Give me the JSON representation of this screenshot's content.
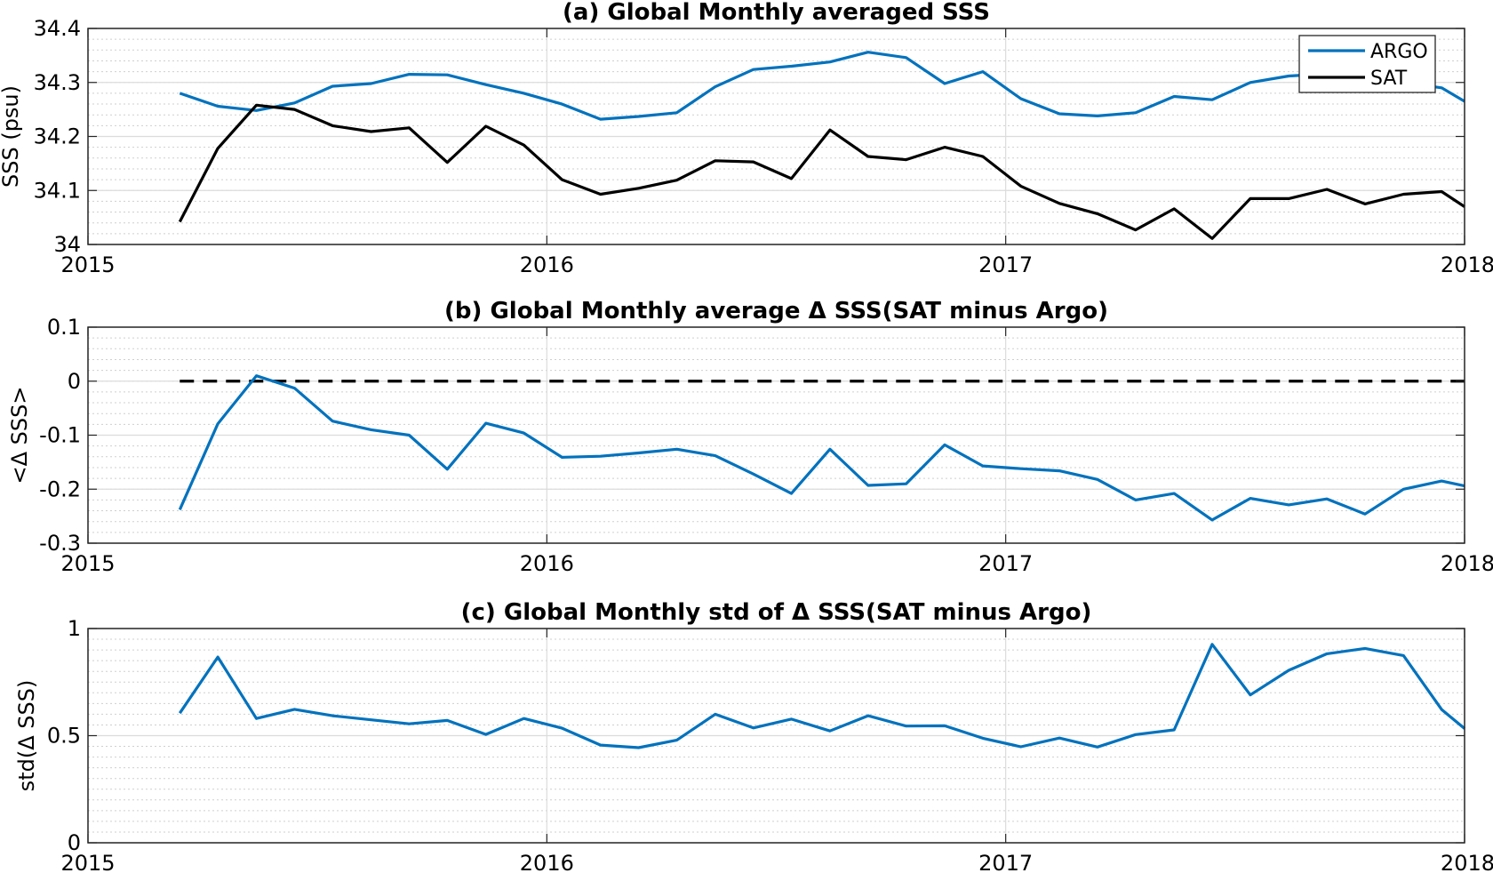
{
  "chart_data": [
    {
      "type": "line",
      "title": "(a) Global Monthly averaged SSS",
      "ylabel": "SSS (psu)",
      "xlabel": "",
      "xlim": [
        2015,
        2018
      ],
      "ylim": [
        34,
        34.4
      ],
      "xticks": [
        2015,
        2016,
        2017,
        2018
      ],
      "xtick_labels": [
        "2015",
        "2016",
        "2017",
        "2018"
      ],
      "yticks": [
        34,
        34.1,
        34.2,
        34.3,
        34.4
      ],
      "ytick_labels": [
        "34",
        "34.1",
        "34.2",
        "34.3",
        "34.4"
      ],
      "grid": true,
      "minor_grid": true,
      "legend": "top-right",
      "x": [
        2015.2,
        2015.283,
        2015.367,
        2015.45,
        2015.533,
        2015.617,
        2015.7,
        2015.783,
        2015.867,
        2015.95,
        2016.033,
        2016.117,
        2016.2,
        2016.283,
        2016.367,
        2016.45,
        2016.533,
        2016.617,
        2016.7,
        2016.783,
        2016.867,
        2016.95,
        2017.033,
        2017.117,
        2017.2,
        2017.283,
        2017.367,
        2017.45,
        2017.533,
        2017.617,
        2017.7,
        2017.783,
        2017.867,
        2017.95,
        2018.0
      ],
      "series": [
        {
          "name": "ARGO",
          "color": "#0072BD",
          "values": [
            34.28,
            34.256,
            34.248,
            34.262,
            34.293,
            34.298,
            34.315,
            34.314,
            34.296,
            34.28,
            34.26,
            34.232,
            34.237,
            34.244,
            34.292,
            34.324,
            34.33,
            34.338,
            34.356,
            34.346,
            34.298,
            34.32,
            34.27,
            34.242,
            34.238,
            34.244,
            34.274,
            34.268,
            34.3,
            34.312,
            34.316,
            34.31,
            34.3,
            34.29,
            34.265
          ]
        },
        {
          "name": "SAT",
          "color": "#000000",
          "values": [
            34.042,
            34.178,
            34.258,
            34.25,
            34.22,
            34.209,
            34.216,
            34.152,
            34.219,
            34.184,
            34.12,
            34.093,
            34.104,
            34.119,
            34.155,
            34.153,
            34.122,
            34.212,
            34.163,
            34.157,
            34.18,
            34.163,
            34.108,
            34.076,
            34.057,
            34.027,
            34.066,
            34.011,
            34.085,
            34.085,
            34.102,
            34.075,
            34.093,
            34.098,
            34.07
          ]
        }
      ]
    },
    {
      "type": "line",
      "title": "(b) Global Monthly average Δ SSS(SAT minus Argo)",
      "ylabel": "<Δ SSS>",
      "xlabel": "",
      "xlim": [
        2015,
        2018
      ],
      "ylim": [
        -0.3,
        0.1
      ],
      "xticks": [
        2015,
        2016,
        2017,
        2018
      ],
      "xtick_labels": [
        "2015",
        "2016",
        "2017",
        "2018"
      ],
      "yticks": [
        -0.3,
        -0.2,
        -0.1,
        0,
        0.1
      ],
      "ytick_labels": [
        "-0.3",
        "-0.2",
        "-0.1",
        "0",
        "0.1"
      ],
      "grid": true,
      "minor_grid": true,
      "reference_line": {
        "y": 0,
        "x_range": [
          2015.2,
          2018.0
        ],
        "style": "dashed",
        "color": "#000000"
      },
      "x": [
        2015.2,
        2015.283,
        2015.367,
        2015.45,
        2015.533,
        2015.617,
        2015.7,
        2015.783,
        2015.867,
        2015.95,
        2016.033,
        2016.117,
        2016.2,
        2016.283,
        2016.367,
        2016.45,
        2016.533,
        2016.617,
        2016.7,
        2016.783,
        2016.867,
        2016.95,
        2017.033,
        2017.117,
        2017.2,
        2017.283,
        2017.367,
        2017.45,
        2017.533,
        2017.617,
        2017.7,
        2017.783,
        2017.867,
        2017.95,
        2018.0
      ],
      "series": [
        {
          "color": "#0072BD",
          "values": [
            -0.238,
            -0.079,
            0.01,
            -0.013,
            -0.074,
            -0.09,
            -0.1,
            -0.163,
            -0.078,
            -0.096,
            -0.141,
            -0.139,
            -0.133,
            -0.126,
            -0.138,
            -0.172,
            -0.208,
            -0.126,
            -0.193,
            -0.19,
            -0.118,
            -0.157,
            -0.162,
            -0.166,
            -0.182,
            -0.22,
            -0.208,
            -0.257,
            -0.217,
            -0.229,
            -0.218,
            -0.246,
            -0.2,
            -0.185,
            -0.194
          ]
        }
      ]
    },
    {
      "type": "line",
      "title": "(c) Global Monthly std of Δ SSS(SAT minus Argo)",
      "ylabel": "std(Δ SSS)",
      "xlabel": "",
      "xlim": [
        2015,
        2018
      ],
      "ylim": [
        0,
        1
      ],
      "xticks": [
        2015,
        2016,
        2017,
        2018
      ],
      "xtick_labels": [
        "2015",
        "2016",
        "2017",
        "2018"
      ],
      "yticks": [
        0,
        0.5,
        1
      ],
      "ytick_labels": [
        "0",
        "0.5",
        "1"
      ],
      "grid": true,
      "minor_grid": true,
      "x": [
        2015.2,
        2015.283,
        2015.367,
        2015.45,
        2015.533,
        2015.617,
        2015.7,
        2015.783,
        2015.867,
        2015.95,
        2016.033,
        2016.117,
        2016.2,
        2016.283,
        2016.367,
        2016.45,
        2016.533,
        2016.617,
        2016.7,
        2016.783,
        2016.867,
        2016.95,
        2017.033,
        2017.117,
        2017.2,
        2017.283,
        2017.367,
        2017.45,
        2017.533,
        2017.617,
        2017.7,
        2017.783,
        2017.867,
        2017.95,
        2018.0
      ],
      "series": [
        {
          "color": "#0072BD",
          "values": [
            0.605,
            0.867,
            0.58,
            0.623,
            0.593,
            0.574,
            0.555,
            0.571,
            0.506,
            0.58,
            0.535,
            0.456,
            0.444,
            0.479,
            0.6,
            0.536,
            0.577,
            0.522,
            0.593,
            0.545,
            0.546,
            0.488,
            0.448,
            0.489,
            0.447,
            0.505,
            0.527,
            0.926,
            0.69,
            0.805,
            0.882,
            0.907,
            0.874,
            0.622,
            0.533
          ]
        }
      ]
    }
  ]
}
